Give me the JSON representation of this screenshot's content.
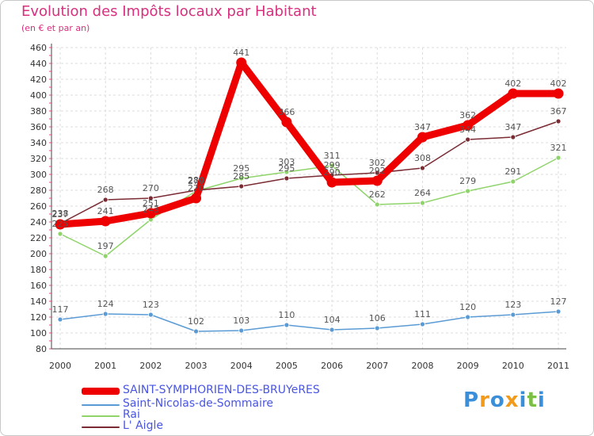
{
  "header": {
    "title": "Evolution des Impôts locaux par Habitant",
    "subtitle": "(en € et par an)"
  },
  "logo": {
    "letters": [
      "P",
      "r",
      "o",
      "x",
      "i",
      "t",
      "i"
    ],
    "colors": [
      "#3a8fd8",
      "#f29a1a",
      "#3a8fd8",
      "#f29a1a",
      "#3a8fd8",
      "#7bc043",
      "#3a8fd8"
    ]
  },
  "chart_data": {
    "type": "line",
    "title": "Evolution des Impôts locaux par Habitant",
    "subtitle": "(en € et par an)",
    "xlabel": "",
    "ylabel": "",
    "x": [
      "2000",
      "2001",
      "2002",
      "2003",
      "2004",
      "2005",
      "2006",
      "2007",
      "2008",
      "2009",
      "2010",
      "2011"
    ],
    "ylim": [
      80,
      460
    ],
    "yticks": [
      80,
      100,
      120,
      140,
      160,
      180,
      200,
      220,
      240,
      260,
      280,
      300,
      320,
      340,
      360,
      380,
      400,
      420,
      440,
      460
    ],
    "grid": true,
    "legend": "bottom-left",
    "series": [
      {
        "name": "SAINT-SYMPHORIEN-DES-BRUYeRES",
        "color": "#ee0000",
        "values": [
          237,
          241,
          251,
          270,
          441,
          366,
          290,
          292,
          347,
          362,
          402,
          402
        ]
      },
      {
        "name": "Saint-Nicolas-de-Sommaire",
        "color": "#5b9bd5",
        "values": [
          117,
          124,
          123,
          102,
          103,
          110,
          104,
          106,
          111,
          120,
          123,
          127
        ]
      },
      {
        "name": "Rai",
        "color": "#8fd46a",
        "values": [
          225,
          197,
          243,
          279,
          295,
          303,
          311,
          262,
          264,
          279,
          291,
          321
        ]
      },
      {
        "name": "L' Aigle",
        "color": "#7a2b33",
        "values": [
          238,
          268,
          270,
          280,
          285,
          295,
          299,
          302,
          308,
          344,
          347,
          367
        ]
      }
    ]
  }
}
